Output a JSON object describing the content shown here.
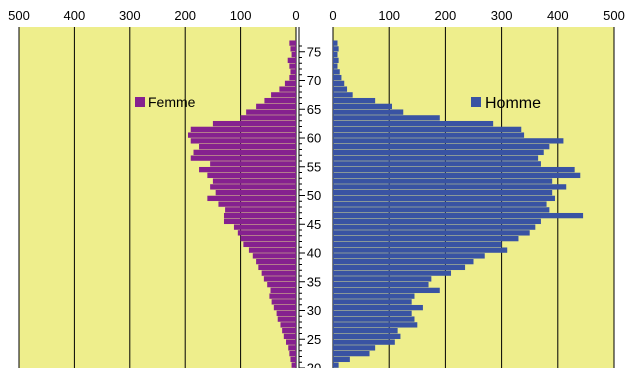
{
  "chart_data": [
    {
      "type": "bar",
      "orientation": "horizontal",
      "side": "left",
      "x_reversed": true,
      "xlim": [
        0,
        500
      ],
      "x_ticks": [
        "500",
        "400",
        "300",
        "200",
        "100",
        "0"
      ],
      "series": [
        {
          "name": "Femme",
          "ages": [
            20,
            21,
            22,
            23,
            24,
            25,
            26,
            27,
            28,
            29,
            30,
            31,
            32,
            33,
            34,
            35,
            36,
            37,
            38,
            39,
            40,
            41,
            42,
            43,
            44,
            45,
            46,
            47,
            48,
            49,
            50,
            51,
            52,
            53,
            54,
            55,
            56,
            57,
            58,
            59,
            60,
            61,
            62,
            63,
            64,
            65,
            66,
            67,
            68,
            69,
            70,
            71,
            72,
            73,
            74,
            75,
            76
          ],
          "values": [
            8,
            10,
            12,
            14,
            18,
            22,
            25,
            28,
            33,
            35,
            40,
            44,
            48,
            46,
            52,
            58,
            62,
            68,
            72,
            78,
            85,
            95,
            100,
            105,
            112,
            130,
            130,
            128,
            140,
            160,
            145,
            155,
            150,
            160,
            175,
            155,
            190,
            185,
            175,
            190,
            195,
            190,
            150,
            100,
            90,
            72,
            57,
            45,
            30,
            20,
            12,
            10,
            12,
            15,
            8,
            10,
            12
          ],
          "color": "#85218F"
        }
      ]
    },
    {
      "type": "bar",
      "orientation": "horizontal",
      "side": "right",
      "xlim": [
        0,
        500
      ],
      "x_ticks": [
        "0",
        "100",
        "200",
        "300",
        "400",
        "500"
      ],
      "y_ticks": [
        "20",
        "25",
        "30",
        "35",
        "40",
        "45",
        "50",
        "55",
        "60",
        "65",
        "70",
        "75"
      ],
      "series": [
        {
          "name": "Homme",
          "ages": [
            20,
            21,
            22,
            23,
            24,
            25,
            26,
            27,
            28,
            29,
            30,
            31,
            32,
            33,
            34,
            35,
            36,
            37,
            38,
            39,
            40,
            41,
            42,
            43,
            44,
            45,
            46,
            47,
            48,
            49,
            50,
            51,
            52,
            53,
            54,
            55,
            56,
            57,
            58,
            59,
            60,
            61,
            62,
            63,
            64,
            65,
            66,
            67,
            68,
            69,
            70,
            71,
            72,
            73,
            74,
            75,
            76
          ],
          "values": [
            10,
            30,
            65,
            75,
            110,
            120,
            115,
            150,
            145,
            140,
            160,
            140,
            145,
            190,
            170,
            175,
            210,
            235,
            250,
            270,
            310,
            300,
            330,
            350,
            360,
            370,
            445,
            385,
            380,
            395,
            390,
            415,
            390,
            440,
            430,
            370,
            365,
            375,
            385,
            410,
            340,
            335,
            285,
            190,
            125,
            105,
            75,
            35,
            25,
            20,
            15,
            12,
            8,
            10,
            8,
            10,
            8
          ],
          "color": "#3953A3"
        }
      ]
    }
  ]
}
